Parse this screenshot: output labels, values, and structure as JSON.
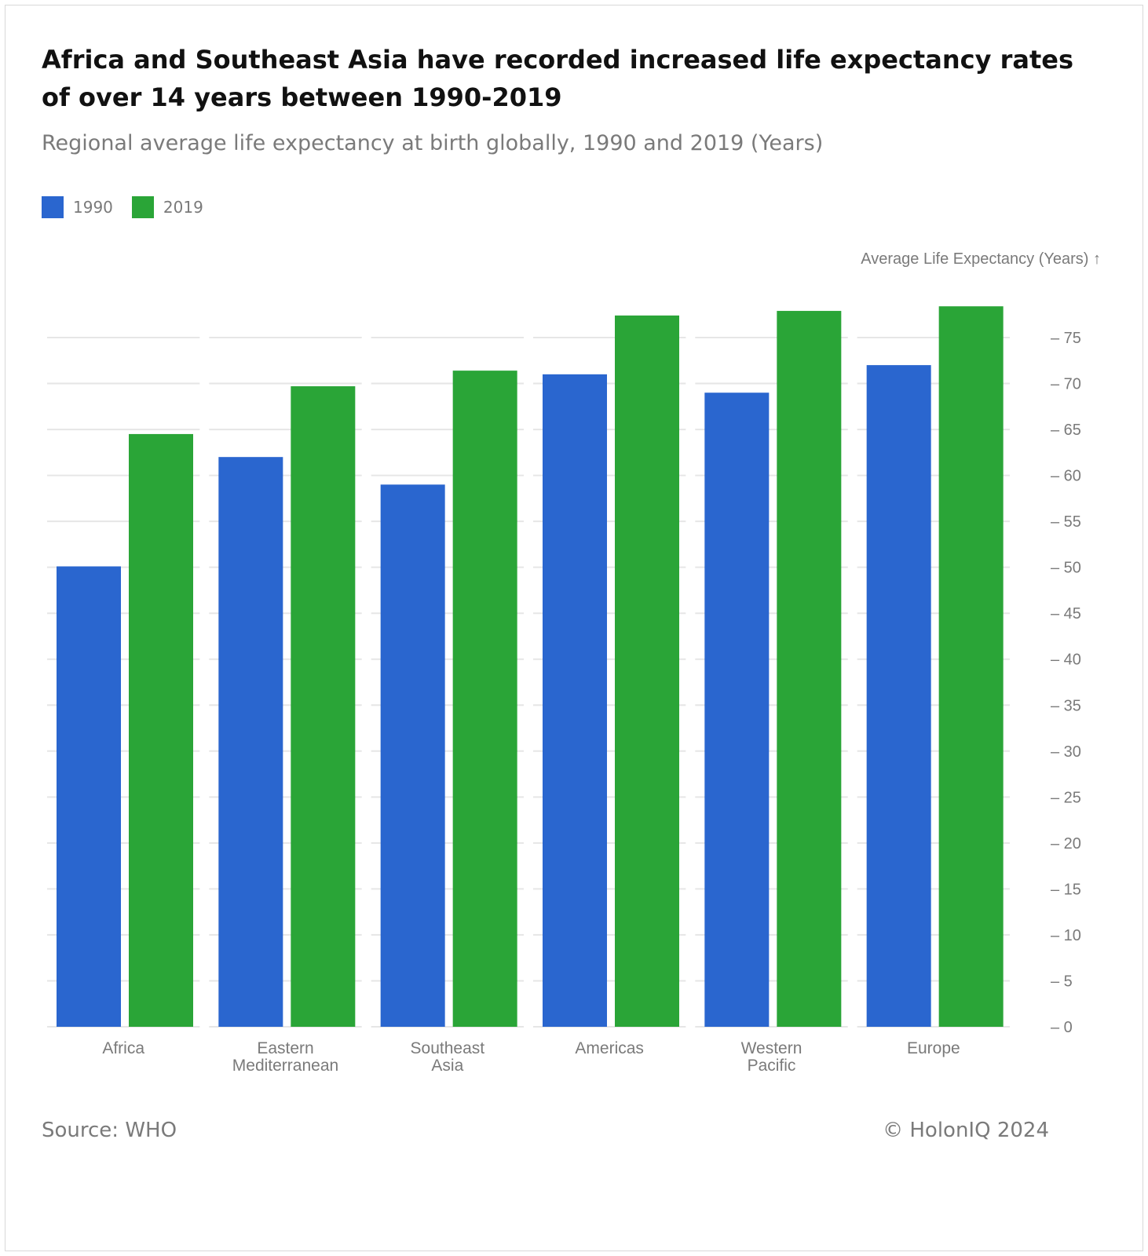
{
  "title": "Africa and Southeast Asia have recorded increased life expectancy rates of over 14 years between 1990-2019",
  "subtitle": "Regional average life expectancy at birth globally, 1990 and 2019 (Years)",
  "footer": {
    "source": "Source: WHO",
    "copyright": "© HolonIQ 2024"
  },
  "colors": {
    "series_1990": "#2a66cf",
    "series_2019": "#2aa537",
    "grid": "#e6e6e6",
    "axis_text": "#7a7a7a"
  },
  "chart_data": {
    "type": "bar",
    "categories": [
      "Africa",
      "Eastern Mediterranean",
      "Southeast Asia",
      "Americas",
      "Western Pacific",
      "Europe"
    ],
    "category_lines": [
      [
        "Africa"
      ],
      [
        "Eastern",
        "Mediterranean"
      ],
      [
        "Southeast",
        "Asia"
      ],
      [
        "Americas"
      ],
      [
        "Western",
        "Pacific"
      ],
      [
        "Europe"
      ]
    ],
    "series": [
      {
        "name": "1990",
        "values": [
          50.1,
          62.0,
          59.0,
          71.0,
          69.0,
          72.0
        ]
      },
      {
        "name": "2019",
        "values": [
          64.5,
          69.7,
          71.4,
          77.4,
          77.9,
          78.4
        ]
      }
    ],
    "ylabel": "Average Life Expectancy (Years) ↑",
    "ylim": [
      0,
      75
    ],
    "yticks": [
      0,
      5,
      10,
      15,
      20,
      25,
      30,
      35,
      40,
      45,
      50,
      55,
      60,
      65,
      70,
      75
    ],
    "y_axis_side": "right",
    "grid": true,
    "legend_position": "top-left"
  }
}
